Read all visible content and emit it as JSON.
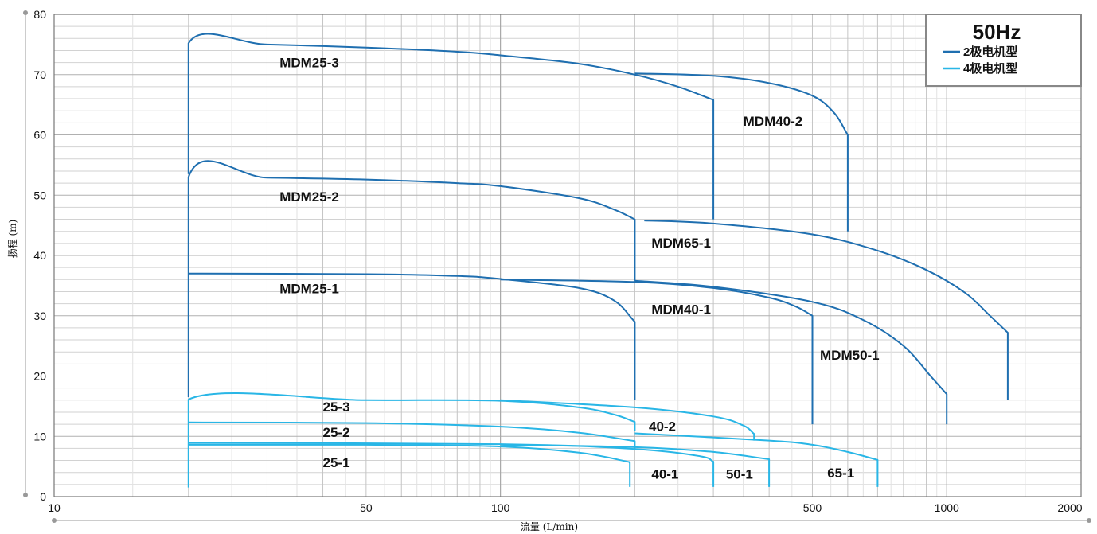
{
  "chart_data": {
    "type": "line",
    "x_scale": "log",
    "xlim": [
      10,
      2000
    ],
    "ylim": [
      0,
      80
    ],
    "xlabel": "流量 (L/min)",
    "ylabel": "扬程 (m)",
    "x_ticks": [
      10,
      50,
      100,
      500,
      1000,
      2000
    ],
    "y_ticks": [
      0,
      10,
      20,
      30,
      40,
      50,
      60,
      70,
      80
    ],
    "grid": true,
    "legend": {
      "title": "50Hz",
      "position": "top-right",
      "entries": [
        {
          "label": "2极电机型",
          "color": "#1f6fb0"
        },
        {
          "label": "4极电机型",
          "color": "#29b6e6"
        }
      ]
    },
    "series": [
      {
        "name": "MDM25-3",
        "group": "2极电机型",
        "points": [
          [
            20,
            53.5
          ],
          [
            20,
            75.2
          ],
          [
            30,
            75
          ],
          [
            50,
            74.5
          ],
          [
            80,
            73.8
          ],
          [
            100,
            73.2
          ],
          [
            150,
            71.8
          ],
          [
            200,
            70
          ],
          [
            250,
            68
          ],
          [
            300,
            65.8
          ],
          [
            300,
            46
          ]
        ],
        "label": {
          "text": "MDM25-3",
          "x": 32,
          "y": 71.2
        }
      },
      {
        "name": "MDM40-2",
        "group": "2极电机型",
        "points": [
          [
            200,
            70.2
          ],
          [
            300,
            69.8
          ],
          [
            400,
            68.6
          ],
          [
            500,
            66.5
          ],
          [
            560,
            63.6
          ],
          [
            600,
            60
          ],
          [
            600,
            44
          ]
        ],
        "label": {
          "text": "MDM40-2",
          "x": 350,
          "y": 61.5
        }
      },
      {
        "name": "MDM25-2",
        "group": "2极电机型",
        "points": [
          [
            20,
            16.5
          ],
          [
            20,
            53
          ],
          [
            30,
            52.9
          ],
          [
            50,
            52.6
          ],
          [
            80,
            52
          ],
          [
            100,
            51.5
          ],
          [
            150,
            49.5
          ],
          [
            180,
            47.6
          ],
          [
            200,
            46
          ],
          [
            200,
            35.8
          ]
        ],
        "label": {
          "text": "MDM25-2",
          "x": 32,
          "y": 49
        }
      },
      {
        "name": "MDM65-1",
        "group": "2极电机型",
        "points": [
          [
            210,
            45.8
          ],
          [
            300,
            45.3
          ],
          [
            500,
            43.5
          ],
          [
            700,
            40.8
          ],
          [
            900,
            37.6
          ],
          [
            1100,
            33.8
          ],
          [
            1250,
            30
          ],
          [
            1370,
            27.2
          ],
          [
            1370,
            16
          ]
        ],
        "label": {
          "text": "MDM65-1",
          "x": 218,
          "y": 41.3
        }
      },
      {
        "name": "MDM25-1",
        "group": "2极电机型",
        "points": [
          [
            20,
            37
          ],
          [
            50,
            36.9
          ],
          [
            80,
            36.6
          ],
          [
            100,
            36.1
          ],
          [
            150,
            34.6
          ],
          [
            180,
            32.5
          ],
          [
            200,
            29
          ],
          [
            200,
            16
          ]
        ],
        "label": {
          "text": "MDM25-1",
          "x": 32,
          "y": 33.7
        }
      },
      {
        "name": "MDM40-1",
        "group": "2极电机型",
        "points": [
          [
            100,
            36
          ],
          [
            200,
            35.6
          ],
          [
            300,
            34.6
          ],
          [
            400,
            33
          ],
          [
            460,
            31.5
          ],
          [
            500,
            30
          ],
          [
            500,
            12
          ]
        ],
        "label": {
          "text": "MDM40-1",
          "x": 218,
          "y": 30.3
        }
      },
      {
        "name": "MDM50-1",
        "group": "2极电机型",
        "points": [
          [
            200,
            35.8
          ],
          [
            300,
            34.8
          ],
          [
            500,
            32.3
          ],
          [
            650,
            29.3
          ],
          [
            800,
            25
          ],
          [
            920,
            20
          ],
          [
            1000,
            17
          ],
          [
            1000,
            12
          ]
        ],
        "label": {
          "text": "MDM50-1",
          "x": 520,
          "y": 22.7
        }
      },
      {
        "name": "25-3",
        "group": "4极电机型",
        "points": [
          [
            20,
            1.5
          ],
          [
            20,
            16.1
          ],
          [
            50,
            16
          ],
          [
            100,
            15.9
          ],
          [
            150,
            14.8
          ],
          [
            180,
            13.6
          ],
          [
            200,
            12.4
          ],
          [
            200,
            10.9
          ]
        ],
        "label": {
          "text": "25-3",
          "x": 40,
          "y": 14.1
        }
      },
      {
        "name": "40-2",
        "group": "4极电机型",
        "points": [
          [
            100,
            16
          ],
          [
            200,
            14.8
          ],
          [
            300,
            13.3
          ],
          [
            350,
            11.8
          ],
          [
            370,
            10.4
          ],
          [
            370,
            9.3
          ]
        ],
        "label": {
          "text": "40-2",
          "x": 215,
          "y": 10.9
        }
      },
      {
        "name": "25-2",
        "group": "4极电机型",
        "points": [
          [
            20,
            12.3
          ],
          [
            50,
            12.2
          ],
          [
            100,
            11.6
          ],
          [
            150,
            10.6
          ],
          [
            200,
            9.2
          ],
          [
            200,
            7.7
          ]
        ],
        "label": {
          "text": "25-2",
          "x": 40,
          "y": 9.9
        }
      },
      {
        "name": "65-1",
        "group": "4极电机型",
        "points": [
          [
            200,
            10.5
          ],
          [
            400,
            9.3
          ],
          [
            500,
            8.6
          ],
          [
            600,
            7.4
          ],
          [
            700,
            6.1
          ],
          [
            700,
            1.6
          ]
        ],
        "label": {
          "text": "65-1",
          "x": 540,
          "y": 3.2
        }
      },
      {
        "name": "25-1",
        "group": "4极电机型",
        "points": [
          [
            20,
            8.6
          ],
          [
            50,
            8.6
          ],
          [
            100,
            8.3
          ],
          [
            150,
            7.3
          ],
          [
            190,
            5.9
          ],
          [
            195,
            5.6
          ],
          [
            195,
            1.6
          ]
        ],
        "label": {
          "text": "25-1",
          "x": 40,
          "y": 4.9
        }
      },
      {
        "name": "40-1",
        "group": "4极电机型",
        "points": [
          [
            20,
            8.9
          ],
          [
            100,
            8.7
          ],
          [
            200,
            7.9
          ],
          [
            280,
            6.7
          ],
          [
            300,
            5.8
          ],
          [
            300,
            1.6
          ]
        ],
        "label": {
          "text": "40-1",
          "x": 218,
          "y": 3
        }
      },
      {
        "name": "50-1",
        "group": "4极电机型",
        "points": [
          [
            100,
            8.6
          ],
          [
            200,
            8.2
          ],
          [
            300,
            7.4
          ],
          [
            400,
            6.2
          ],
          [
            400,
            1.6
          ]
        ],
        "label": {
          "text": "50-1",
          "x": 320,
          "y": 3
        }
      }
    ]
  }
}
